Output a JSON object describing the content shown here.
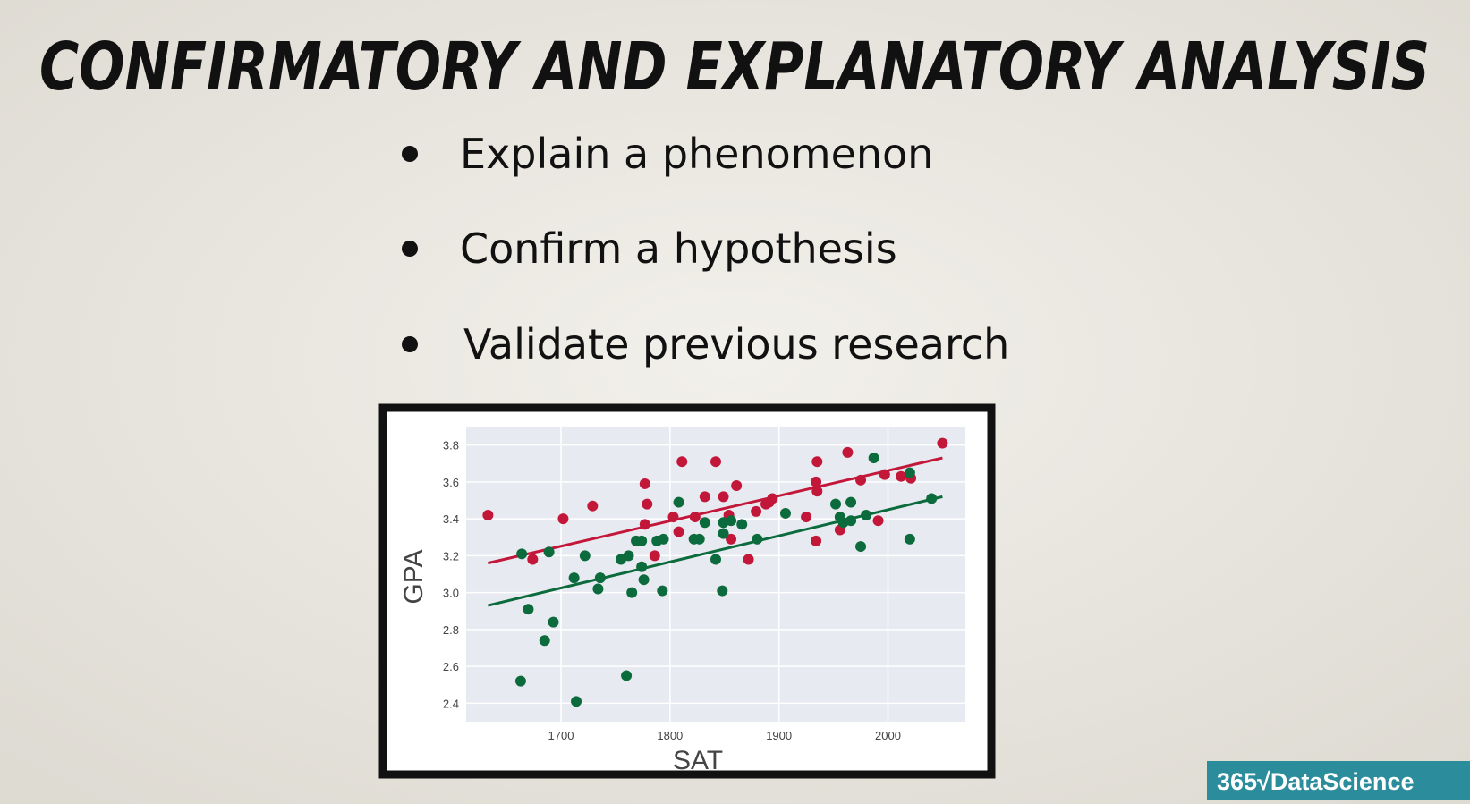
{
  "slide": {
    "title": "CONFIRMATORY AND EXPLANATORY ANALYSIS",
    "bullets": [
      "Explain a phenomenon",
      "Confirm a hypothesis",
      "Validate previous research"
    ],
    "logo": "365√DataScience"
  },
  "chart_data": {
    "type": "scatter",
    "xlabel": "SAT",
    "ylabel": "GPA",
    "xlim": [
      1613,
      2071
    ],
    "ylim": [
      2.3,
      3.9
    ],
    "xticks": [
      1700,
      1800,
      1900,
      2000
    ],
    "yticks": [
      2.4,
      2.6,
      2.8,
      {
        "value": 3,
        "label": "3.0"
      },
      3.2,
      3.4,
      3.6,
      3.8
    ],
    "grid": true,
    "series": [
      {
        "color": "#c3173a",
        "x": [
          1633,
          1674,
          1702,
          1729,
          1777,
          1779,
          1777,
          1786,
          1803,
          1811,
          1808,
          1823,
          1832,
          1842,
          1849,
          1854,
          1856,
          1861,
          1872,
          1879,
          1888,
          1891,
          1894,
          1925,
          1935,
          1934,
          1935,
          1934,
          1963,
          1956,
          1975,
          1991,
          1997,
          2012,
          2021,
          2050
        ],
        "values": [
          3.42,
          3.18,
          3.4,
          3.47,
          3.59,
          3.48,
          3.37,
          3.2,
          3.41,
          3.71,
          3.33,
          3.41,
          3.52,
          3.71,
          3.52,
          3.42,
          3.29,
          3.58,
          3.18,
          3.44,
          3.48,
          3.49,
          3.51,
          3.41,
          3.71,
          3.6,
          3.55,
          3.28,
          3.76,
          3.34,
          3.61,
          3.39,
          3.64,
          3.63,
          3.62,
          3.81
        ],
        "fit": {
          "x": [
            1633,
            2050
          ],
          "values": [
            3.16,
            3.73
          ]
        }
      },
      {
        "color": "#0c6b3c",
        "x": [
          1663,
          1664,
          1670,
          1685,
          1689,
          1693,
          1714,
          1712,
          1722,
          1734,
          1736,
          1755,
          1760,
          1762,
          1765,
          1769,
          1774,
          1774,
          1776,
          1788,
          1793,
          1794,
          1808,
          1822,
          1827,
          1832,
          1842,
          1848,
          1849,
          1849,
          1856,
          1866,
          1880,
          1906,
          1952,
          1956,
          1959,
          1966,
          1966,
          1975,
          1980,
          1987,
          2020,
          2020,
          2040
        ],
        "values": [
          2.52,
          3.21,
          2.91,
          2.74,
          3.22,
          2.84,
          2.41,
          3.08,
          3.2,
          3.02,
          3.08,
          3.18,
          2.55,
          3.2,
          3.0,
          3.28,
          3.28,
          3.14,
          3.07,
          3.28,
          3.01,
          3.29,
          3.49,
          3.29,
          3.29,
          3.38,
          3.18,
          3.01,
          3.38,
          3.32,
          3.39,
          3.37,
          3.29,
          3.43,
          3.48,
          3.41,
          3.38,
          3.49,
          3.39,
          3.25,
          3.42,
          3.73,
          3.29,
          3.65,
          3.51
        ],
        "fit": {
          "x": [
            1633,
            2050
          ],
          "values": [
            2.93,
            3.52
          ]
        }
      }
    ]
  }
}
